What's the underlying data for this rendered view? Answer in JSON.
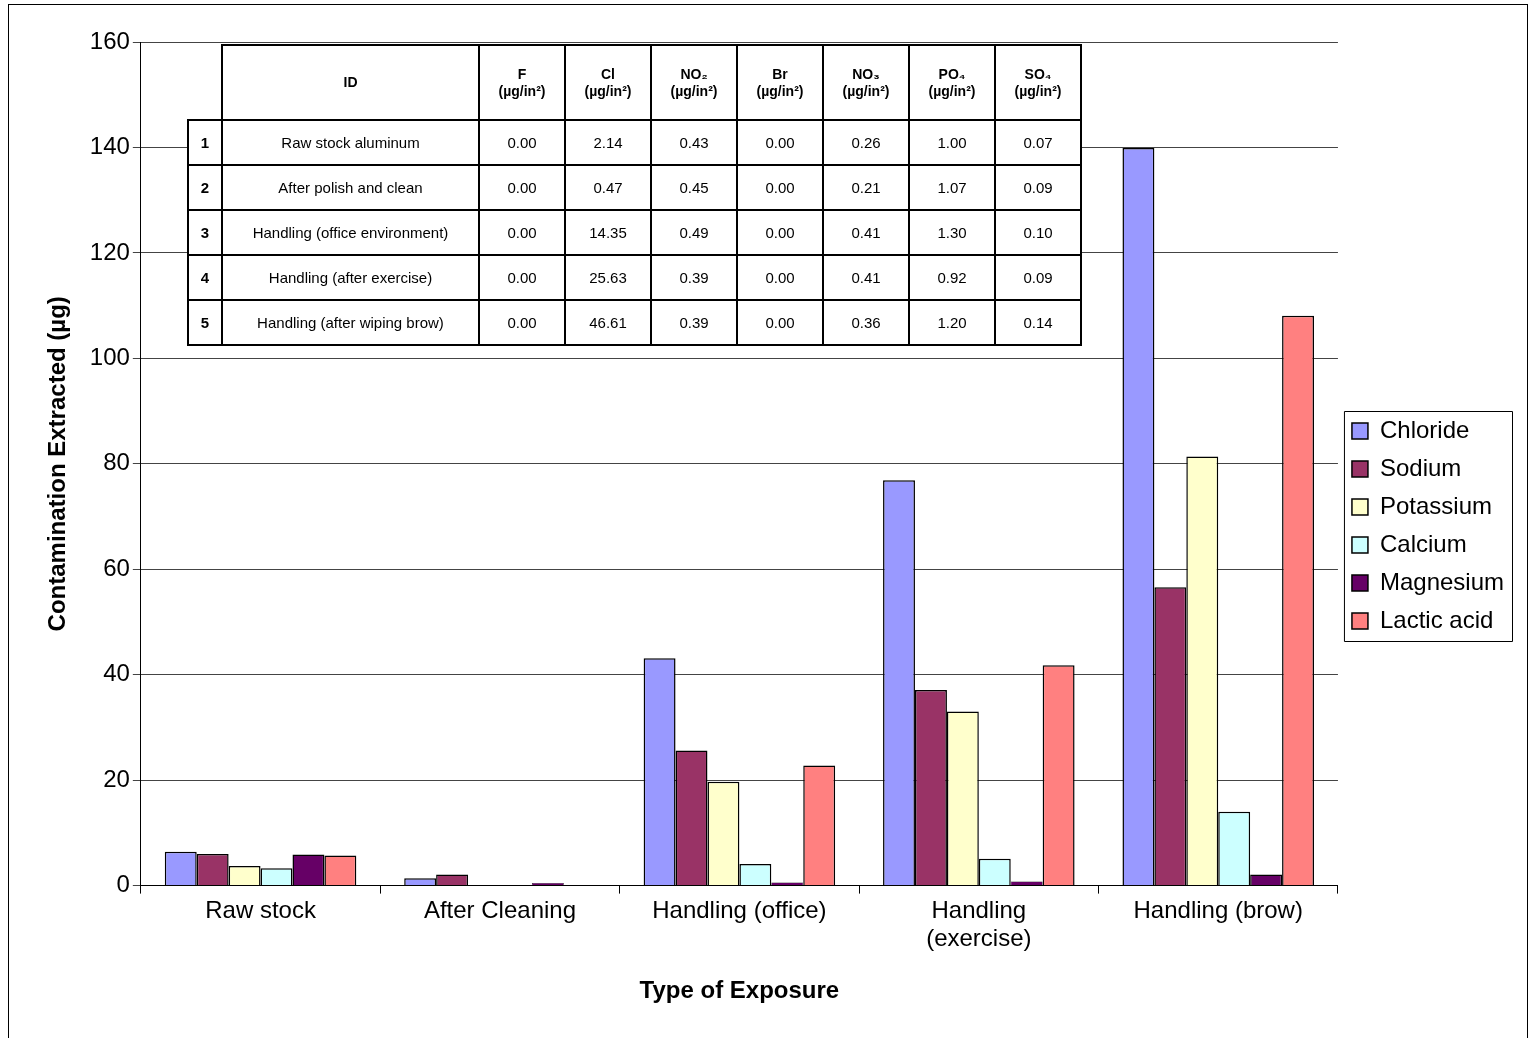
{
  "chart_data": [
    {
      "type": "bar",
      "xlabel": "Type of Exposure",
      "ylabel": "Contamination Extracted (µg)",
      "categories": [
        "Raw stock",
        "After Cleaning",
        "Handling (office)",
        "Handling (exercise)",
        "Handling (brow)"
      ],
      "series": [
        {
          "name": "Chloride",
          "color": "#9999ff",
          "values": [
            6.4,
            1.4,
            43.1,
            76.9,
            139.9
          ]
        },
        {
          "name": "Sodium",
          "color": "#993366",
          "values": [
            6.0,
            2.1,
            25.6,
            37.1,
            56.6
          ]
        },
        {
          "name": "Potassium",
          "color": "#ffffcc",
          "values": [
            3.7,
            0,
            19.7,
            33.0,
            81.4
          ]
        },
        {
          "name": "Calcium",
          "color": "#ccffff",
          "values": [
            3.3,
            0,
            4.1,
            5.1,
            14.0
          ]
        },
        {
          "name": "Magnesium",
          "color": "#660066",
          "values": [
            5.9,
            0.5,
            0.6,
            0.8,
            2.1
          ]
        },
        {
          "name": "Lactic acid",
          "color": "#ff8080",
          "values": [
            5.7,
            0,
            22.8,
            41.8,
            108.1
          ]
        }
      ],
      "ylim": [
        0,
        160
      ],
      "yticks": [
        0,
        20,
        40,
        60,
        80,
        100,
        120,
        140,
        160
      ],
      "grid": "y",
      "legend": "right"
    },
    {
      "type": "heatmap",
      "y2label": "ID",
      "categories": [
        "F\n(µg/in²)",
        "Cl\n(µg/in²)",
        "NO₂\n(µg/in²)",
        "Br\n(µg/in²)",
        "NO₃\n(µg/in²)",
        "PO₄\n(µg/in²)",
        "SO₄\n(µg/in²)"
      ],
      "y_categories": [
        "Raw stock aluminum",
        "After polish and clean",
        "Handling (office environment)",
        "Handling (after exercise)",
        "Handling (after wiping brow)"
      ],
      "y2_categories": [
        "1",
        "2",
        "3",
        "4",
        "5"
      ],
      "cells": [
        [
          0,
          2.14,
          0.43,
          0,
          0.26,
          1,
          0.07
        ],
        [
          0,
          0.47,
          0.45,
          0,
          0.21,
          1.07,
          0.09
        ],
        [
          0,
          14.35,
          0.49,
          0,
          0.41,
          1.3,
          0.1
        ],
        [
          0,
          25.63,
          0.39,
          0,
          0.41,
          0.92,
          0.09
        ],
        [
          0,
          46.61,
          0.39,
          0,
          0.36,
          1.2,
          0.14
        ]
      ],
      "cell_labels": [
        [
          "0.00",
          "2.14",
          "0.43",
          "0.00",
          "0.26",
          "1.00",
          "0.07"
        ],
        [
          "0.00",
          "0.47",
          "0.45",
          "0.00",
          "0.21",
          "1.07",
          "0.09"
        ],
        [
          "0.00",
          "14.35",
          "0.49",
          "0.00",
          "0.41",
          "1.30",
          "0.10"
        ],
        [
          "0.00",
          "25.63",
          "0.39",
          "0.00",
          "0.41",
          "0.92",
          "0.09"
        ],
        [
          "0.00",
          "46.61",
          "0.39",
          "0.00",
          "0.36",
          "1.20",
          "0.14"
        ]
      ]
    }
  ]
}
